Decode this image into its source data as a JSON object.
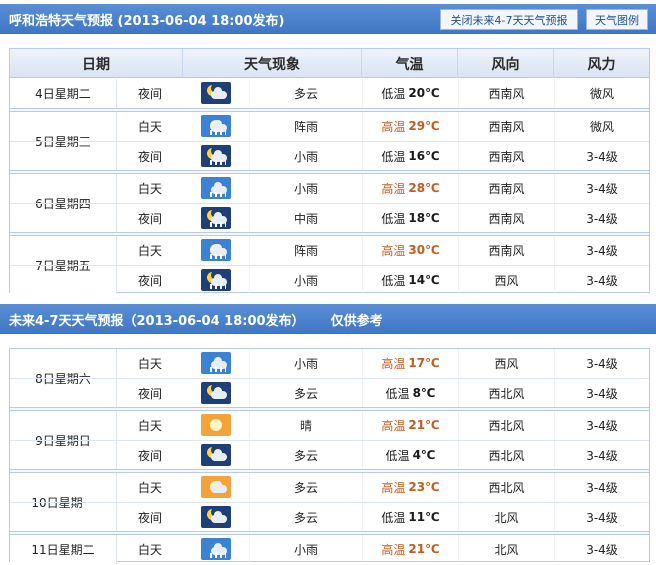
{
  "header1": {
    "title": "呼和浩特天气预报 (2013-06-04  18:00发布)",
    "close_btn": "关闭未来4-7天天气预报",
    "legend_btn": "天气图例"
  },
  "columns": [
    "日期",
    "天气现象",
    "气温",
    "风向",
    "风力"
  ],
  "header2": {
    "title": "未来4-7天天气预报（2013-06-04 18:00发布）",
    "note": "仅供参考"
  },
  "days1": [
    {
      "day": "4日星期二",
      "rows": [
        {
          "period": "夜间",
          "icon": "night-cloudy-icon",
          "desc": "多云",
          "temp_label": "低温",
          "temp": "20℃",
          "wind_dir": "西南风",
          "wind_power": "微风"
        }
      ]
    },
    {
      "day": "5日星期三",
      "rows": [
        {
          "period": "白天",
          "icon": "shower-icon",
          "desc": "阵雨",
          "temp_label": "高温",
          "temp": "29℃",
          "wind_dir": "西南风",
          "wind_power": "微风"
        },
        {
          "period": "夜间",
          "icon": "night-light-rain-icon",
          "desc": "小雨",
          "temp_label": "低温",
          "temp": "16℃",
          "wind_dir": "西南风",
          "wind_power": "3-4级"
        }
      ]
    },
    {
      "day": "6日星期四",
      "rows": [
        {
          "period": "白天",
          "icon": "light-rain-icon",
          "desc": "小雨",
          "temp_label": "高温",
          "temp": "28℃",
          "wind_dir": "西南风",
          "wind_power": "3-4级"
        },
        {
          "period": "夜间",
          "icon": "night-moderate-rain-icon",
          "desc": "中雨",
          "temp_label": "低温",
          "temp": "18℃",
          "wind_dir": "西南风",
          "wind_power": "3-4级"
        }
      ]
    },
    {
      "day": "7日星期五",
      "rows": [
        {
          "period": "白天",
          "icon": "shower-icon",
          "desc": "阵雨",
          "temp_label": "高温",
          "temp": "30℃",
          "wind_dir": "西南风",
          "wind_power": "3-4级"
        },
        {
          "period": "夜间",
          "icon": "night-light-rain-icon",
          "desc": "小雨",
          "temp_label": "低温",
          "temp": "14℃",
          "wind_dir": "西风",
          "wind_power": "3-4级"
        }
      ]
    }
  ],
  "days2": [
    {
      "day": "8日星期六",
      "rows": [
        {
          "period": "白天",
          "icon": "light-rain-icon",
          "desc": "小雨",
          "temp_label": "高温",
          "temp": "17℃",
          "wind_dir": "西风",
          "wind_power": "3-4级"
        },
        {
          "period": "夜间",
          "icon": "night-cloudy-icon",
          "desc": "多云",
          "temp_label": "低温",
          "temp": "8℃",
          "wind_dir": "西北风",
          "wind_power": "3-4级"
        }
      ]
    },
    {
      "day": "9日星期日",
      "rows": [
        {
          "period": "白天",
          "icon": "sunny-icon",
          "desc": "晴",
          "temp_label": "高温",
          "temp": "21℃",
          "wind_dir": "西北风",
          "wind_power": "3-4级"
        },
        {
          "period": "夜间",
          "icon": "night-cloudy-icon",
          "desc": "多云",
          "temp_label": "低温",
          "temp": "4℃",
          "wind_dir": "西北风",
          "wind_power": "3-4级"
        }
      ]
    },
    {
      "day": "10日星期一",
      "rows": [
        {
          "period": "白天",
          "icon": "day-cloudy-icon",
          "desc": "多云",
          "temp_label": "高温",
          "temp": "23℃",
          "wind_dir": "西北风",
          "wind_power": "3-4级"
        },
        {
          "period": "夜间",
          "icon": "night-cloudy-icon",
          "desc": "多云",
          "temp_label": "低温",
          "temp": "11℃",
          "wind_dir": "北风",
          "wind_power": "3-4级"
        }
      ]
    },
    {
      "day": "11日星期二",
      "rows": [
        {
          "period": "白天",
          "icon": "light-rain-icon",
          "desc": "小雨",
          "temp_label": "高温",
          "temp": "21℃",
          "wind_dir": "北风",
          "wind_power": "3-4级"
        }
      ]
    }
  ]
}
